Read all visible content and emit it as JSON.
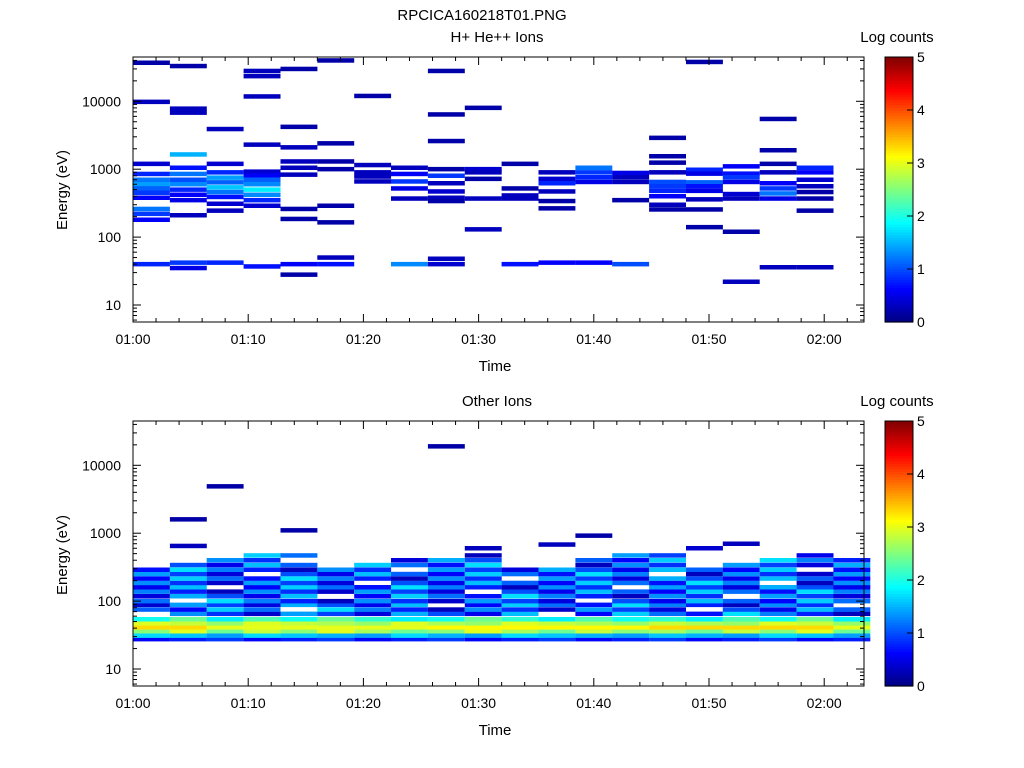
{
  "figure_title": "RPCICA160218T01.PNG",
  "chart_data": [
    {
      "type": "heatmap",
      "title": "H+ He++ Ions",
      "xlabel": "Time",
      "ylabel": "Energy (eV)",
      "x_ticks": [
        "01:00",
        "01:10",
        "01:20",
        "01:30",
        "01:40",
        "01:50",
        "02:00"
      ],
      "y_ticks": [
        "10",
        "100",
        "1000",
        "10000"
      ],
      "y_scale": "log",
      "xlim_minutes": [
        0,
        63
      ],
      "ylim": [
        6,
        45000
      ],
      "colorbar": {
        "label": "Log counts",
        "ticks": [
          "0",
          "1",
          "2",
          "3",
          "4",
          "5"
        ],
        "range": [
          0,
          5
        ]
      },
      "time_bins_minutes": [
        0,
        3.2,
        6.4,
        9.6,
        12.8,
        16,
        19.2,
        22.4,
        25.6,
        28.8,
        32,
        35.2,
        38.4,
        41.6,
        44.8,
        48,
        51.2,
        54.4,
        57.6,
        60.8
      ],
      "cells": [
        {
          "bin": 0,
          "e": 37000,
          "v": 0.2
        },
        {
          "bin": 0,
          "e": 9800,
          "v": 0.3
        },
        {
          "bin": 0,
          "e": 1200,
          "v": 0.4
        },
        {
          "bin": 0,
          "e": 850,
          "v": 0.8
        },
        {
          "bin": 0,
          "e": 700,
          "v": 1.2
        },
        {
          "bin": 0,
          "e": 600,
          "v": 1.4
        },
        {
          "bin": 0,
          "e": 520,
          "v": 1.1
        },
        {
          "bin": 0,
          "e": 450,
          "v": 0.9
        },
        {
          "bin": 0,
          "e": 380,
          "v": 0.6
        },
        {
          "bin": 0,
          "e": 260,
          "v": 1.2
        },
        {
          "bin": 0,
          "e": 220,
          "v": 0.9
        },
        {
          "bin": 0,
          "e": 180,
          "v": 0.6
        },
        {
          "bin": 0,
          "e": 40,
          "v": 0.8
        },
        {
          "bin": 1,
          "e": 33000,
          "v": 0.2
        },
        {
          "bin": 1,
          "e": 7800,
          "v": 0.3
        },
        {
          "bin": 1,
          "e": 6800,
          "v": 0.3
        },
        {
          "bin": 1,
          "e": 1650,
          "v": 1.5
        },
        {
          "bin": 1,
          "e": 1050,
          "v": 0.7
        },
        {
          "bin": 1,
          "e": 850,
          "v": 1.2
        },
        {
          "bin": 1,
          "e": 700,
          "v": 1.0
        },
        {
          "bin": 1,
          "e": 600,
          "v": 1.3
        },
        {
          "bin": 1,
          "e": 500,
          "v": 0.8
        },
        {
          "bin": 1,
          "e": 420,
          "v": 0.6
        },
        {
          "bin": 1,
          "e": 350,
          "v": 0.5
        },
        {
          "bin": 1,
          "e": 210,
          "v": 0.3
        },
        {
          "bin": 1,
          "e": 42,
          "v": 0.9
        },
        {
          "bin": 1,
          "e": 35,
          "v": 0.5
        },
        {
          "bin": 2,
          "e": 3900,
          "v": 0.3
        },
        {
          "bin": 2,
          "e": 1200,
          "v": 0.4
        },
        {
          "bin": 2,
          "e": 900,
          "v": 0.8
        },
        {
          "bin": 2,
          "e": 750,
          "v": 1.4
        },
        {
          "bin": 2,
          "e": 640,
          "v": 1.1
        },
        {
          "bin": 2,
          "e": 540,
          "v": 1.6
        },
        {
          "bin": 2,
          "e": 460,
          "v": 1.2
        },
        {
          "bin": 2,
          "e": 390,
          "v": 0.7
        },
        {
          "bin": 2,
          "e": 310,
          "v": 0.4
        },
        {
          "bin": 2,
          "e": 245,
          "v": 0.3
        },
        {
          "bin": 2,
          "e": 42,
          "v": 0.8
        },
        {
          "bin": 3,
          "e": 28000,
          "v": 0.3
        },
        {
          "bin": 3,
          "e": 23500,
          "v": 0.3
        },
        {
          "bin": 3,
          "e": 11800,
          "v": 0.3
        },
        {
          "bin": 3,
          "e": 2300,
          "v": 0.3
        },
        {
          "bin": 3,
          "e": 920,
          "v": 0.4
        },
        {
          "bin": 3,
          "e": 800,
          "v": 0.6
        },
        {
          "bin": 3,
          "e": 700,
          "v": 1.1
        },
        {
          "bin": 3,
          "e": 600,
          "v": 1.3
        },
        {
          "bin": 3,
          "e": 500,
          "v": 1.8
        },
        {
          "bin": 3,
          "e": 420,
          "v": 1.3
        },
        {
          "bin": 3,
          "e": 350,
          "v": 0.8
        },
        {
          "bin": 3,
          "e": 290,
          "v": 0.4
        },
        {
          "bin": 3,
          "e": 37,
          "v": 0.7
        },
        {
          "bin": 4,
          "e": 30000,
          "v": 0.2
        },
        {
          "bin": 4,
          "e": 4200,
          "v": 0.2
        },
        {
          "bin": 4,
          "e": 2100,
          "v": 0.3
        },
        {
          "bin": 4,
          "e": 1300,
          "v": 0.3
        },
        {
          "bin": 4,
          "e": 1050,
          "v": 0.3
        },
        {
          "bin": 4,
          "e": 830,
          "v": 0.3
        },
        {
          "bin": 4,
          "e": 260,
          "v": 0.2
        },
        {
          "bin": 4,
          "e": 185,
          "v": 0.2
        },
        {
          "bin": 4,
          "e": 40,
          "v": 0.6
        },
        {
          "bin": 4,
          "e": 28,
          "v": 0.2
        },
        {
          "bin": 5,
          "e": 40000,
          "v": 0.2
        },
        {
          "bin": 5,
          "e": 2400,
          "v": 0.2
        },
        {
          "bin": 5,
          "e": 1300,
          "v": 0.2
        },
        {
          "bin": 5,
          "e": 1000,
          "v": 0.2
        },
        {
          "bin": 5,
          "e": 290,
          "v": 0.2
        },
        {
          "bin": 5,
          "e": 165,
          "v": 0.2
        },
        {
          "bin": 5,
          "e": 50,
          "v": 0.3
        },
        {
          "bin": 5,
          "e": 40,
          "v": 0.7
        },
        {
          "bin": 6,
          "e": 12000,
          "v": 0.2
        },
        {
          "bin": 6,
          "e": 1150,
          "v": 0.3
        },
        {
          "bin": 6,
          "e": 900,
          "v": 0.3
        },
        {
          "bin": 6,
          "e": 780,
          "v": 0.3
        },
        {
          "bin": 6,
          "e": 660,
          "v": 0.3
        },
        {
          "bin": 7,
          "e": 1050,
          "v": 0.3
        },
        {
          "bin": 7,
          "e": 850,
          "v": 0.6
        },
        {
          "bin": 7,
          "e": 660,
          "v": 0.9
        },
        {
          "bin": 7,
          "e": 520,
          "v": 0.5
        },
        {
          "bin": 7,
          "e": 370,
          "v": 0.3
        },
        {
          "bin": 7,
          "e": 40,
          "v": 1.3
        },
        {
          "bin": 8,
          "e": 28000,
          "v": 0.2
        },
        {
          "bin": 8,
          "e": 6400,
          "v": 0.2
        },
        {
          "bin": 8,
          "e": 2600,
          "v": 0.2
        },
        {
          "bin": 8,
          "e": 1000,
          "v": 0.2
        },
        {
          "bin": 8,
          "e": 800,
          "v": 0.9
        },
        {
          "bin": 8,
          "e": 620,
          "v": 0.3
        },
        {
          "bin": 8,
          "e": 470,
          "v": 0.4
        },
        {
          "bin": 8,
          "e": 380,
          "v": 0.3
        },
        {
          "bin": 8,
          "e": 340,
          "v": 0.2
        },
        {
          "bin": 8,
          "e": 48,
          "v": 0.3
        },
        {
          "bin": 8,
          "e": 40,
          "v": 0.4
        },
        {
          "bin": 9,
          "e": 8000,
          "v": 0.2
        },
        {
          "bin": 9,
          "e": 1000,
          "v": 0.4
        },
        {
          "bin": 9,
          "e": 900,
          "v": 0.3
        },
        {
          "bin": 9,
          "e": 720,
          "v": 0.2
        },
        {
          "bin": 9,
          "e": 370,
          "v": 0.3
        },
        {
          "bin": 9,
          "e": 130,
          "v": 0.3
        },
        {
          "bin": 10,
          "e": 1200,
          "v": 0.2
        },
        {
          "bin": 10,
          "e": 520,
          "v": 0.2
        },
        {
          "bin": 10,
          "e": 410,
          "v": 0.3
        },
        {
          "bin": 10,
          "e": 370,
          "v": 0.3
        },
        {
          "bin": 10,
          "e": 40,
          "v": 0.7
        },
        {
          "bin": 11,
          "e": 900,
          "v": 0.3
        },
        {
          "bin": 11,
          "e": 720,
          "v": 0.4
        },
        {
          "bin": 11,
          "e": 620,
          "v": 0.8
        },
        {
          "bin": 11,
          "e": 470,
          "v": 0.3
        },
        {
          "bin": 11,
          "e": 340,
          "v": 0.2
        },
        {
          "bin": 11,
          "e": 265,
          "v": 0.2
        },
        {
          "bin": 11,
          "e": 42,
          "v": 0.6
        },
        {
          "bin": 12,
          "e": 1050,
          "v": 1.2
        },
        {
          "bin": 12,
          "e": 900,
          "v": 0.9
        },
        {
          "bin": 12,
          "e": 760,
          "v": 0.8
        },
        {
          "bin": 12,
          "e": 650,
          "v": 0.5
        },
        {
          "bin": 12,
          "e": 42,
          "v": 0.6
        },
        {
          "bin": 13,
          "e": 880,
          "v": 0.5
        },
        {
          "bin": 13,
          "e": 760,
          "v": 0.3
        },
        {
          "bin": 13,
          "e": 650,
          "v": 0.3
        },
        {
          "bin": 13,
          "e": 350,
          "v": 0.2
        },
        {
          "bin": 13,
          "e": 40,
          "v": 1.0
        },
        {
          "bin": 14,
          "e": 2900,
          "v": 0.2
        },
        {
          "bin": 14,
          "e": 1550,
          "v": 0.2
        },
        {
          "bin": 14,
          "e": 1250,
          "v": 0.2
        },
        {
          "bin": 14,
          "e": 900,
          "v": 0.3
        },
        {
          "bin": 14,
          "e": 650,
          "v": 1.0
        },
        {
          "bin": 14,
          "e": 560,
          "v": 0.9
        },
        {
          "bin": 14,
          "e": 480,
          "v": 0.8
        },
        {
          "bin": 14,
          "e": 400,
          "v": 0.6
        },
        {
          "bin": 14,
          "e": 300,
          "v": 0.3
        },
        {
          "bin": 14,
          "e": 255,
          "v": 0.2
        },
        {
          "bin": 15,
          "e": 38000,
          "v": 0.2
        },
        {
          "bin": 15,
          "e": 980,
          "v": 0.8
        },
        {
          "bin": 15,
          "e": 860,
          "v": 0.5
        },
        {
          "bin": 15,
          "e": 640,
          "v": 1.1
        },
        {
          "bin": 15,
          "e": 560,
          "v": 0.7
        },
        {
          "bin": 15,
          "e": 480,
          "v": 0.5
        },
        {
          "bin": 15,
          "e": 360,
          "v": 0.3
        },
        {
          "bin": 15,
          "e": 255,
          "v": 0.2
        },
        {
          "bin": 15,
          "e": 140,
          "v": 0.2
        },
        {
          "bin": 16,
          "e": 1100,
          "v": 0.6
        },
        {
          "bin": 16,
          "e": 860,
          "v": 0.7
        },
        {
          "bin": 16,
          "e": 760,
          "v": 0.9
        },
        {
          "bin": 16,
          "e": 650,
          "v": 0.5
        },
        {
          "bin": 16,
          "e": 430,
          "v": 0.4
        },
        {
          "bin": 16,
          "e": 370,
          "v": 0.3
        },
        {
          "bin": 16,
          "e": 120,
          "v": 0.2
        },
        {
          "bin": 16,
          "e": 22,
          "v": 0.3
        },
        {
          "bin": 17,
          "e": 5500,
          "v": 0.2
        },
        {
          "bin": 17,
          "e": 1900,
          "v": 0.2
        },
        {
          "bin": 17,
          "e": 1200,
          "v": 0.2
        },
        {
          "bin": 17,
          "e": 900,
          "v": 0.3
        },
        {
          "bin": 17,
          "e": 620,
          "v": 0.6
        },
        {
          "bin": 17,
          "e": 520,
          "v": 0.9
        },
        {
          "bin": 17,
          "e": 440,
          "v": 1.2
        },
        {
          "bin": 17,
          "e": 370,
          "v": 0.5
        },
        {
          "bin": 17,
          "e": 36,
          "v": 0.3
        },
        {
          "bin": 18,
          "e": 1050,
          "v": 0.8
        },
        {
          "bin": 18,
          "e": 900,
          "v": 0.6
        },
        {
          "bin": 18,
          "e": 700,
          "v": 0.4
        },
        {
          "bin": 18,
          "e": 560,
          "v": 0.3
        },
        {
          "bin": 18,
          "e": 460,
          "v": 0.2
        },
        {
          "bin": 18,
          "e": 370,
          "v": 0.2
        },
        {
          "bin": 18,
          "e": 245,
          "v": 0.2
        },
        {
          "bin": 18,
          "e": 36,
          "v": 0.3
        }
      ]
    },
    {
      "type": "heatmap",
      "title": "Other Ions",
      "xlabel": "Time",
      "ylabel": "Energy (eV)",
      "x_ticks": [
        "01:00",
        "01:10",
        "01:20",
        "01:30",
        "01:40",
        "01:50",
        "02:00"
      ],
      "y_ticks": [
        "10",
        "100",
        "1000",
        "10000"
      ],
      "y_scale": "log",
      "xlim_minutes": [
        0,
        63
      ],
      "ylim": [
        6,
        45000
      ],
      "colorbar": {
        "label": "Log counts",
        "ticks": [
          "0",
          "1",
          "2",
          "3",
          "4",
          "5"
        ],
        "range": [
          0,
          5
        ]
      },
      "time_bins_minutes": [
        0,
        3.2,
        6.4,
        9.6,
        12.8,
        16,
        19.2,
        22.4,
        25.6,
        28.8,
        32,
        35.2,
        38.4,
        41.6,
        44.8,
        48,
        51.2,
        54.4,
        57.6,
        60.8
      ],
      "cells": [
        {
          "bin": 1,
          "e": 1600,
          "v": 0.2
        },
        {
          "bin": 1,
          "e": 650,
          "v": 0.3
        },
        {
          "bin": 2,
          "e": 4900,
          "v": 0.2
        },
        {
          "bin": 4,
          "e": 1100,
          "v": 0.2
        },
        {
          "bin": 8,
          "e": 19000,
          "v": 0.2
        },
        {
          "bin": 9,
          "e": 600,
          "v": 0.3
        },
        {
          "bin": 11,
          "e": 680,
          "v": 0.3
        },
        {
          "bin": 12,
          "e": 920,
          "v": 0.2
        },
        {
          "bin": 15,
          "e": 600,
          "v": 0.4
        },
        {
          "bin": 16,
          "e": 700,
          "v": 0.3
        }
      ]
    }
  ]
}
